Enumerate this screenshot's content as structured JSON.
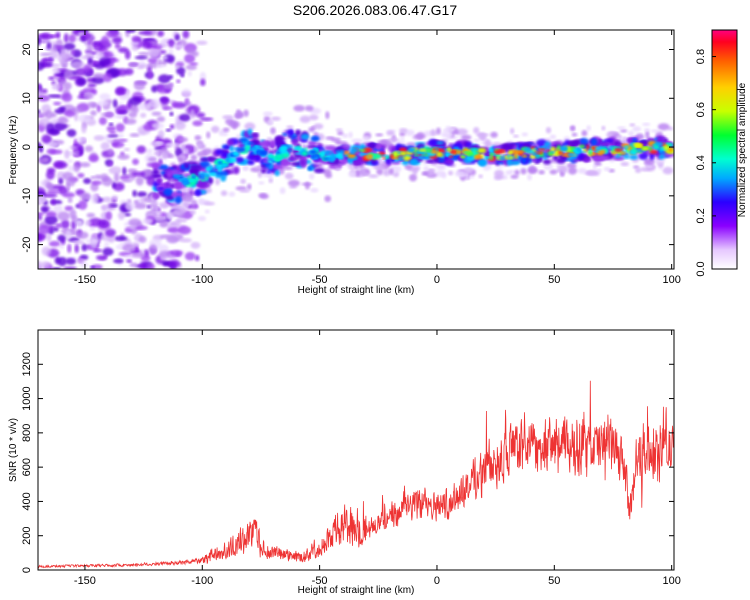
{
  "figure_title": "S206.2026.083.06.47.G17",
  "chart_data": [
    {
      "type": "heatmap",
      "title": "S206.2026.083.06.47.G17",
      "xlabel": "Height of straight line (km)",
      "ylabel": "Frequency (Hz)",
      "xlim": [
        -170,
        101
      ],
      "ylim": [
        -25,
        24
      ],
      "xticks": [
        -150,
        -100,
        -50,
        0,
        50,
        100
      ],
      "xtick_labels": [
        "-150",
        "-100",
        "-50",
        "0",
        "50",
        "100"
      ],
      "yticks": [
        -20,
        -10,
        0,
        10,
        20
      ],
      "ytick_labels": [
        "-20",
        "-10",
        "0",
        "10",
        "20"
      ],
      "ridge_x": [
        -120,
        -110,
        -100,
        -90,
        -80,
        -70,
        -62,
        -55,
        -45,
        -35,
        -25,
        -15,
        0,
        25,
        50,
        75,
        100
      ],
      "ridge_y": [
        -7,
        -7.5,
        -6,
        -3,
        0,
        -2.5,
        0,
        -1,
        -2,
        -1.5,
        -1.5,
        -1.5,
        -1,
        -1.5,
        -1,
        -0.5,
        0
      ],
      "colorbar": {
        "label": "Normalized spectral amplitude",
        "range": [
          0,
          0.9
        ],
        "ticks": [
          0.0,
          0.2,
          0.4,
          0.6,
          0.8
        ],
        "tick_labels": [
          "0.0",
          "0.2",
          "0.4",
          "0.6",
          "0.8"
        ]
      }
    },
    {
      "type": "line",
      "xlabel": "Height of straight line (km)",
      "ylabel": "SNR (10 * v/v)",
      "xlim": [
        -170,
        101
      ],
      "ylim": [
        0,
        1400
      ],
      "xticks": [
        -150,
        -100,
        -50,
        0,
        50,
        100
      ],
      "xtick_labels": [
        "-150",
        "-100",
        "-50",
        "0",
        "50",
        "100"
      ],
      "yticks": [
        0,
        200,
        400,
        600,
        800,
        1000,
        1200
      ],
      "ytick_labels": [
        "0",
        "200",
        "400",
        "600",
        "800",
        "1000",
        "1200"
      ],
      "color": "#ee3333",
      "series": [
        {
          "name": "SNR",
          "x": [
            -170,
            -150,
            -130,
            -110,
            -100,
            -95,
            -90,
            -85,
            -80,
            -78,
            -75,
            -70,
            -65,
            -60,
            -55,
            -50,
            -45,
            -40,
            -35,
            -30,
            -25,
            -20,
            -15,
            -10,
            -5,
            0,
            5,
            10,
            15,
            20,
            25,
            30,
            35,
            40,
            45,
            50,
            55,
            60,
            65,
            70,
            75,
            80,
            82,
            85,
            90,
            95,
            97,
            100
          ],
          "y": [
            20,
            25,
            30,
            40,
            60,
            90,
            110,
            150,
            200,
            250,
            130,
            100,
            90,
            80,
            90,
            140,
            200,
            260,
            260,
            250,
            280,
            300,
            340,
            380,
            400,
            380,
            400,
            450,
            520,
            580,
            640,
            680,
            700,
            710,
            720,
            730,
            720,
            730,
            700,
            720,
            720,
            600,
            300,
            650,
            700,
            660,
            780,
            680
          ]
        }
      ]
    }
  ]
}
